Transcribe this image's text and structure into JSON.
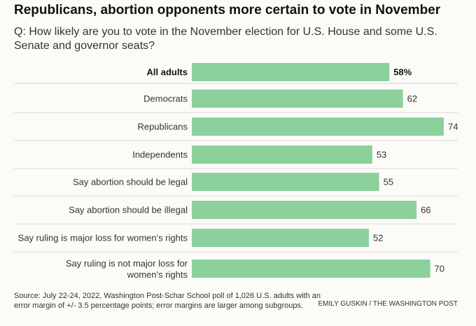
{
  "title": "Republicans, abortion opponents more certain to vote in November",
  "subtitle": "Q: How likely are you to vote in the November election for U.S. House and some U.S. Senate and governor seats?",
  "source": "Source: July 22-24, 2022, Washington Post-Schar School poll of 1,026 U.S. adults with an error margin of +/- 3.5 percentage points; error margins are larger among subgroups.",
  "credit": "EMILY GUSKIN / THE WASHINGTON POST",
  "colors": {
    "bar": "#8cd09c",
    "grid": "#d9d9d9"
  },
  "chart_data": {
    "type": "bar",
    "orientation": "horizontal",
    "categories": [
      "All adults",
      "Democrats",
      "Republicans",
      "Independents",
      "Say abortion should be legal",
      "Say abortion should be illegal",
      "Say ruling is major loss for women's rights",
      "Say ruling is not major loss for women's rights"
    ],
    "values": [
      58,
      62,
      74,
      53,
      55,
      66,
      52,
      70
    ],
    "value_labels": [
      "58%",
      "62",
      "74",
      "53",
      "55",
      "66",
      "52",
      "70"
    ],
    "xlim": [
      0,
      74
    ],
    "grid": false
  }
}
